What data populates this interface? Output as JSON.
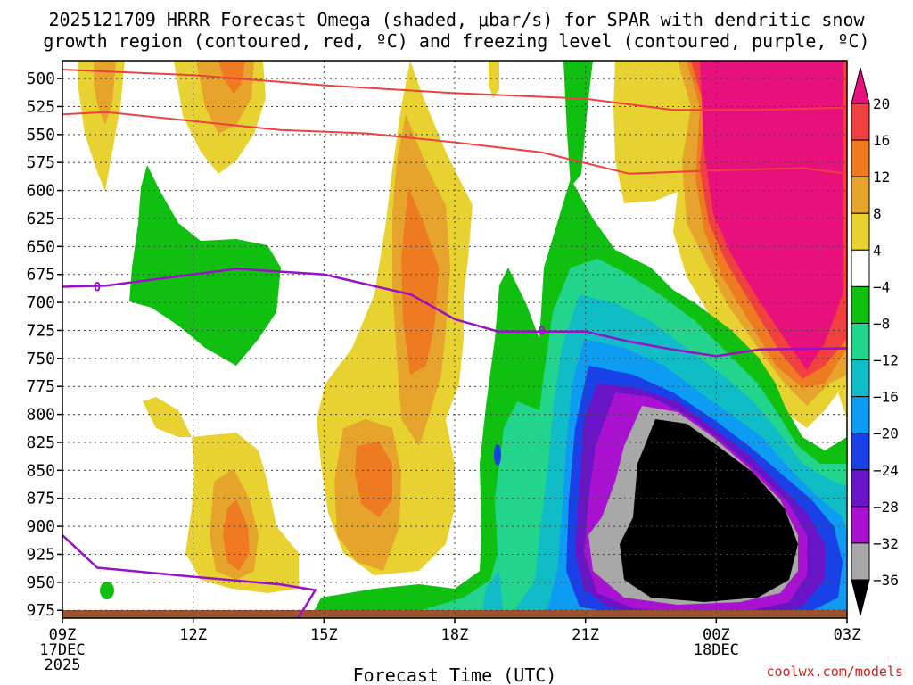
{
  "chart_data": {
    "type": "heatmap",
    "title_lines": [
      "2025121709 HRRR Forecast Omega (shaded, μbar/s) for SPAR with dendritic snow",
      "growth region (contoured, red, ºC) and freezing level (contoured, purple, ºC)"
    ],
    "xlabel": "Forecast Time (UTC)",
    "credit": "coolwx.com/models",
    "x_ticks": [
      {
        "hours": 0,
        "label": "09Z",
        "sub": [
          "17DEC",
          "2025"
        ]
      },
      {
        "hours": 3,
        "label": "12Z",
        "sub": []
      },
      {
        "hours": 6,
        "label": "15Z",
        "sub": []
      },
      {
        "hours": 9,
        "label": "18Z",
        "sub": []
      },
      {
        "hours": 12,
        "label": "21Z",
        "sub": []
      },
      {
        "hours": 15,
        "label": "00Z",
        "sub": [
          "18DEC"
        ]
      },
      {
        "hours": 18,
        "label": "03Z",
        "sub": []
      }
    ],
    "xlim_hours": [
      0,
      18
    ],
    "y_ticks": [
      500,
      525,
      550,
      575,
      600,
      625,
      650,
      675,
      700,
      725,
      750,
      775,
      800,
      825,
      850,
      875,
      900,
      925,
      950,
      975
    ],
    "ylim_mb": [
      484,
      982
    ],
    "colorbar": {
      "labels": [
        "20",
        "16",
        "12",
        "8",
        "4",
        "−4",
        "−8",
        "−12",
        "−16",
        "−20",
        "−24",
        "−28",
        "−32",
        "−36"
      ],
      "colors": [
        "#e8107a",
        "#f04040",
        "#ee7a22",
        "#e6a42c",
        "#e8d232",
        "#ffffff",
        "#10c010",
        "#22d48c",
        "#10bcc6",
        "#0d9cf2",
        "#1a40e8",
        "#6a14c8",
        "#a812d0",
        "#a8a8a8",
        "#000000"
      ]
    },
    "contour_labels": [
      {
        "text": "0",
        "hours": 0.8,
        "mb": 686
      },
      {
        "text": "0",
        "hours": 11.0,
        "mb": 725
      }
    ],
    "dgz_lines_mb": [
      {
        "name": "dgz-upper",
        "points": [
          [
            0,
            492
          ],
          [
            3,
            497
          ],
          [
            6,
            506
          ],
          [
            9,
            513
          ],
          [
            12,
            518
          ],
          [
            14,
            528
          ],
          [
            16,
            528
          ],
          [
            18,
            526
          ]
        ]
      },
      {
        "name": "dgz-lower",
        "points": [
          [
            0,
            532
          ],
          [
            1,
            530
          ],
          [
            3,
            538
          ],
          [
            5,
            546
          ],
          [
            7,
            549
          ],
          [
            9,
            557
          ],
          [
            11,
            566
          ],
          [
            13,
            585
          ],
          [
            15,
            582
          ],
          [
            17,
            580
          ],
          [
            18,
            585
          ]
        ]
      }
    ],
    "freezing_line_mb": [
      [
        0,
        686
      ],
      [
        1,
        685
      ],
      [
        2,
        680
      ],
      [
        4,
        670
      ],
      [
        6,
        675
      ],
      [
        8,
        693
      ],
      [
        9,
        715
      ],
      [
        10,
        726
      ],
      [
        12,
        726
      ],
      [
        13,
        735
      ],
      [
        14,
        742
      ],
      [
        15,
        748
      ],
      [
        16,
        742
      ],
      [
        18,
        741
      ]
    ],
    "freezing_line_low_mb": [
      [
        0,
        908
      ],
      [
        0.8,
        937
      ],
      [
        3,
        945
      ],
      [
        5,
        952
      ],
      [
        5.8,
        957
      ],
      [
        5.6,
        970
      ],
      [
        5.4,
        982
      ]
    ]
  }
}
